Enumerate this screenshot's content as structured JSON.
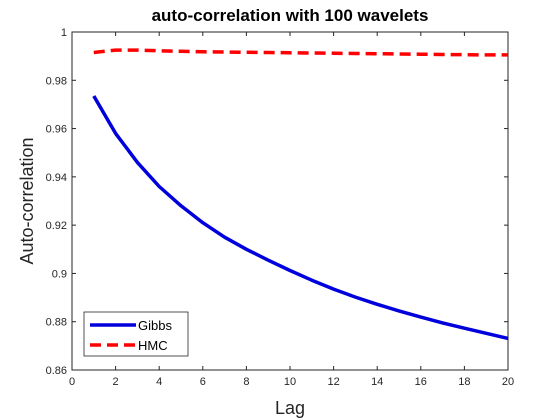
{
  "chart_data": {
    "type": "line",
    "title": "auto-correlation with 100 wavelets",
    "xlabel": "Lag",
    "ylabel": "Auto-correlation",
    "xlim": [
      0,
      20
    ],
    "ylim": [
      0.86,
      1.0
    ],
    "xticks": [
      0,
      2,
      4,
      6,
      8,
      10,
      12,
      14,
      16,
      18,
      20
    ],
    "yticks": [
      0.86,
      0.88,
      0.9,
      0.92,
      0.94,
      0.96,
      0.98,
      1
    ],
    "ytick_labels": [
      "0.86",
      "0.88",
      "0.9",
      "0.92",
      "0.94",
      "0.96",
      "0.98",
      "1"
    ],
    "grid": false,
    "legend_position": "bottom-left",
    "x": [
      1,
      2,
      3,
      4,
      5,
      6,
      7,
      8,
      9,
      10,
      11,
      12,
      13,
      14,
      15,
      16,
      17,
      18,
      19,
      20
    ],
    "series": [
      {
        "name": "Gibbs",
        "color": "#0000dd",
        "style": "solid",
        "values": [
          0.9735,
          0.958,
          0.946,
          0.936,
          0.928,
          0.921,
          0.915,
          0.91,
          0.9055,
          0.9012,
          0.8972,
          0.8935,
          0.8902,
          0.8872,
          0.8845,
          0.8819,
          0.8795,
          0.8773,
          0.8752,
          0.8731
        ]
      },
      {
        "name": "HMC",
        "color": "#ff0000",
        "style": "dashed",
        "values": [
          0.9915,
          0.9925,
          0.9925,
          0.9922,
          0.992,
          0.9918,
          0.9917,
          0.9916,
          0.9915,
          0.9914,
          0.9913,
          0.9912,
          0.9911,
          0.991,
          0.9909,
          0.9908,
          0.9907,
          0.9906,
          0.9905,
          0.9905
        ]
      }
    ]
  }
}
